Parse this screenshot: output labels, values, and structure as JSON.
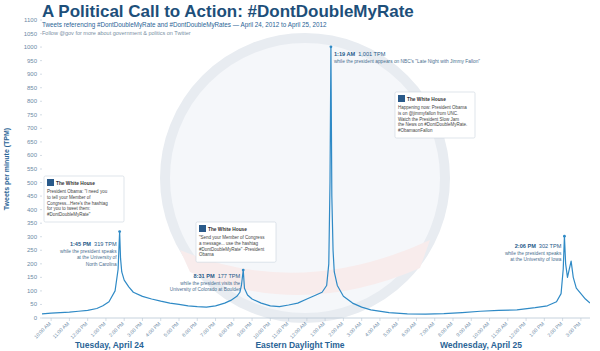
{
  "chart_data": {
    "type": "line",
    "title": "A Political Call to Action: #DontDoubleMyRate",
    "subtitle": "Tweets referencing #DontDoubleMyRate and #DontDoubleMyRates — April 24, 2012 to April 25, 2012",
    "note": "Follow @gov for more about government & politics on Twitter",
    "y_label": "Tweets per minute (TPM)",
    "x_label": "Eastern Daylight Time",
    "day_labels": [
      "Tuesday, April 24",
      "Wednesday, April 25"
    ],
    "color": "#2f8ac6",
    "grid": false,
    "xlim": [
      0,
      1800
    ],
    "ylim": [
      0,
      1100
    ],
    "yticks": [
      0,
      50,
      100,
      150,
      200,
      250,
      300,
      350,
      400,
      450,
      500,
      550,
      600,
      650,
      700,
      750,
      800,
      850,
      900,
      950,
      1000,
      1050,
      1100
    ],
    "xticks": [
      {
        "value": 30,
        "label": "10:00 AM"
      },
      {
        "value": 90,
        "label": "11:00 AM"
      },
      {
        "value": 150,
        "label": "12:00 PM"
      },
      {
        "value": 210,
        "label": "1:00 PM"
      },
      {
        "value": 270,
        "label": "2:00 PM"
      },
      {
        "value": 330,
        "label": "3:00 PM"
      },
      {
        "value": 390,
        "label": "4:00 PM"
      },
      {
        "value": 450,
        "label": "5:00 PM"
      },
      {
        "value": 510,
        "label": "6:00 PM"
      },
      {
        "value": 570,
        "label": "7:00 PM"
      },
      {
        "value": 630,
        "label": "8:00 PM"
      },
      {
        "value": 690,
        "label": "9:00 PM"
      },
      {
        "value": 750,
        "label": "10:00 PM"
      },
      {
        "value": 810,
        "label": "11:00 PM"
      },
      {
        "value": 870,
        "label": "12:00 AM"
      },
      {
        "value": 930,
        "label": "1:00 AM"
      },
      {
        "value": 990,
        "label": "2:00 AM"
      },
      {
        "value": 1050,
        "label": "3:00 AM"
      },
      {
        "value": 1110,
        "label": "4:00 AM"
      },
      {
        "value": 1170,
        "label": "5:00 AM"
      },
      {
        "value": 1230,
        "label": "6:00 AM"
      },
      {
        "value": 1290,
        "label": "7:00 AM"
      },
      {
        "value": 1350,
        "label": "8:00 AM"
      },
      {
        "value": 1410,
        "label": "9:00 AM"
      },
      {
        "value": 1470,
        "label": "10:00 AM"
      },
      {
        "value": 1530,
        "label": "11:00 AM"
      },
      {
        "value": 1590,
        "label": "12:00 PM"
      },
      {
        "value": 1650,
        "label": "1:00 PM"
      },
      {
        "value": 1710,
        "label": "2:00 PM"
      },
      {
        "value": 1770,
        "label": "3:00 PM"
      }
    ],
    "x": [
      0,
      30,
      60,
      90,
      120,
      150,
      180,
      200,
      220,
      240,
      250,
      255,
      258,
      262,
      270,
      285,
      300,
      330,
      360,
      390,
      420,
      450,
      480,
      510,
      540,
      570,
      600,
      620,
      640,
      650,
      655,
      661,
      665,
      675,
      690,
      720,
      750,
      780,
      810,
      840,
      870,
      900,
      920,
      935,
      942,
      946,
      949,
      952,
      956,
      960,
      970,
      990,
      1020,
      1050,
      1080,
      1140,
      1200,
      1260,
      1320,
      1380,
      1440,
      1500,
      1560,
      1620,
      1660,
      1690,
      1705,
      1712,
      1716,
      1720,
      1726,
      1732,
      1738,
      1745,
      1755,
      1770,
      1785,
      1800
    ],
    "values": [
      15,
      18,
      20,
      22,
      25,
      28,
      35,
      45,
      60,
      100,
      180,
      319,
      220,
      170,
      140,
      115,
      95,
      80,
      70,
      62,
      55,
      50,
      45,
      42,
      40,
      45,
      55,
      65,
      80,
      95,
      120,
      177,
      110,
      85,
      70,
      55,
      45,
      42,
      48,
      55,
      70,
      85,
      95,
      120,
      200,
      500,
      1001,
      450,
      250,
      170,
      120,
      80,
      55,
      40,
      30,
      20,
      15,
      14,
      16,
      20,
      25,
      28,
      30,
      38,
      45,
      60,
      90,
      180,
      302,
      200,
      150,
      180,
      210,
      150,
      110,
      90,
      70,
      55
    ],
    "annotations": [
      {
        "x": 255,
        "y": 319,
        "label": "1:45 PM",
        "value_label": "319 TPM",
        "text": [
          "while the president speaks",
          "at the University of",
          "North Carolina"
        ],
        "tweet": {
          "author": "The White House",
          "text": [
            "President Obama: \"I need you",
            "to tell your Member of",
            "Congress...Here's the hashtag",
            "for you to tweet them:",
            "#DontDoubleMyRate\""
          ]
        }
      },
      {
        "x": 661,
        "y": 177,
        "label": "8:31 PM",
        "value_label": "177 TPM",
        "text": [
          "while the president visits the",
          "University of Colorado at Boulder"
        ],
        "tweet": {
          "author": "The White House",
          "text": [
            "\"Send your Member of Congress",
            "a message... use the hashtag",
            "#DontDoubleMyRate\" -President",
            "Obama"
          ]
        }
      },
      {
        "x": 949,
        "y": 1001,
        "label": "1:19 AM",
        "value_label": "1,001 TPM",
        "text": [
          "while the president appears on NBC's \"Late Night with Jimmy Fallon\""
        ],
        "tweet": {
          "author": "The White House",
          "text": [
            "Happening now: President Obama",
            "is on @jimmyfallon from UNC.",
            "Watch the President Slow Jam",
            "the News on #DontDoubleMyRate.",
            "#ObamaonFallon"
          ]
        }
      },
      {
        "x": 1716,
        "y": 302,
        "label": "2:06 PM",
        "value_label": "302 TPM",
        "text": [
          "while the president speaks",
          "at the University of Iowa"
        ]
      }
    ]
  }
}
